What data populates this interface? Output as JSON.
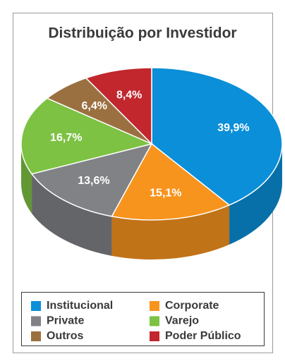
{
  "chart_data": {
    "type": "pie3d",
    "title": "Distribuição por Investidor",
    "categories": [
      "Institucional",
      "Corporate",
      "Private",
      "Varejo",
      "Outros",
      "Poder Público"
    ],
    "values": [
      39.9,
      15.1,
      13.6,
      16.7,
      6.4,
      8.4
    ],
    "value_labels": [
      "39,9%",
      "15,1%",
      "13,6%",
      "16,7%",
      "6,4%",
      "8,4%"
    ],
    "colors": [
      "#0a8fd8",
      "#f7941d",
      "#808285",
      "#7dc243",
      "#9b7040",
      "#c1272d"
    ],
    "legend": "bottom"
  }
}
